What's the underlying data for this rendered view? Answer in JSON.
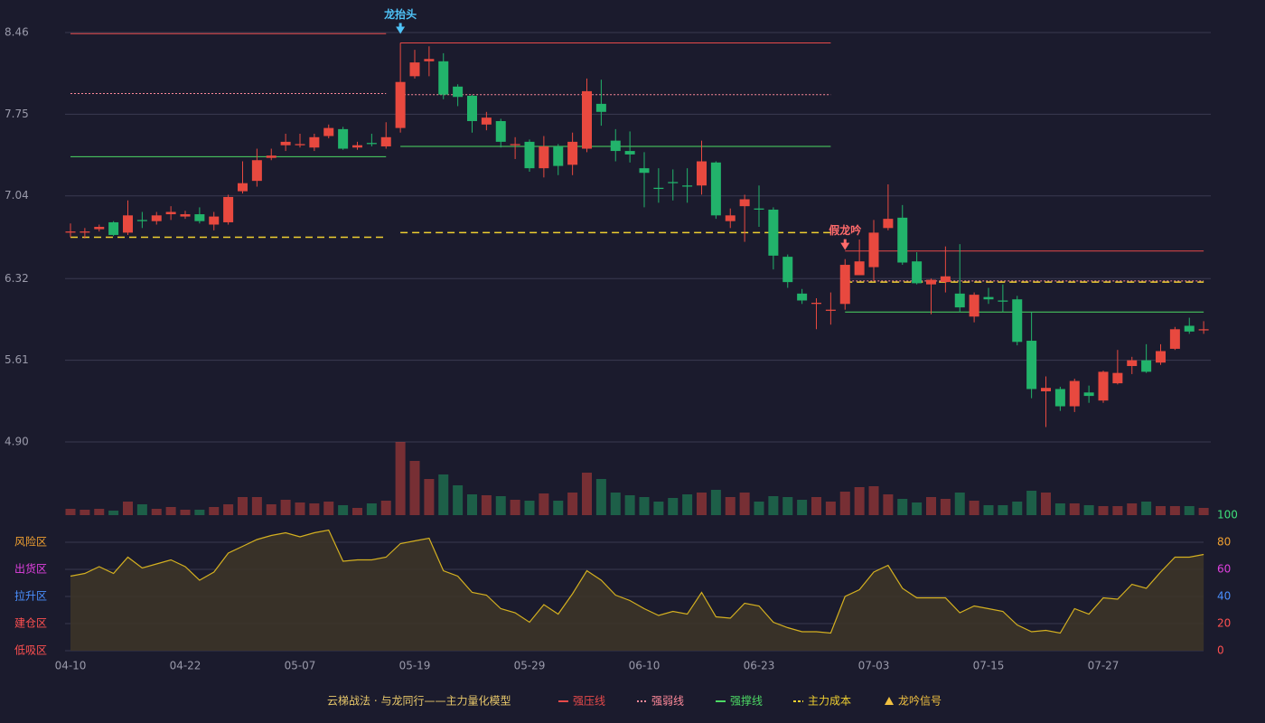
{
  "chart_data": {
    "type": "candlestick",
    "categories": [
      "04-10",
      null,
      null,
      null,
      null,
      null,
      null,
      null,
      "04-22",
      null,
      null,
      null,
      null,
      null,
      null,
      null,
      "05-07",
      null,
      null,
      null,
      null,
      null,
      null,
      null,
      "05-19",
      null,
      null,
      null,
      null,
      null,
      null,
      null,
      "05-29",
      null,
      null,
      null,
      null,
      null,
      null,
      null,
      "06-10",
      null,
      null,
      null,
      null,
      null,
      null,
      null,
      "06-23",
      null,
      null,
      null,
      null,
      null,
      null,
      null,
      "07-03",
      null,
      null,
      null,
      null,
      null,
      null,
      null,
      "07-15",
      null,
      null,
      null,
      null,
      null,
      null,
      null,
      "07-27",
      null,
      null,
      null,
      null,
      null,
      null,
      null
    ],
    "open": [
      6.72,
      6.72,
      6.75,
      6.81,
      6.72,
      6.83,
      6.82,
      6.88,
      6.86,
      6.88,
      6.79,
      6.81,
      7.08,
      7.17,
      7.37,
      7.48,
      7.48,
      7.46,
      7.56,
      7.62,
      7.46,
      7.5,
      7.47,
      7.63,
      8.08,
      8.21,
      8.21,
      7.99,
      7.91,
      7.66,
      7.69,
      7.48,
      7.51,
      7.28,
      7.47,
      7.31,
      7.45,
      7.84,
      7.52,
      7.43,
      7.28,
      7.11,
      7.16,
      7.13,
      7.13,
      7.33,
      6.82,
      6.95,
      6.93,
      6.92,
      6.51,
      6.19,
      6.1,
      6.04,
      6.1,
      6.35,
      6.42,
      6.76,
      6.85,
      6.47,
      6.27,
      6.29,
      6.19,
      5.99,
      6.16,
      6.13,
      6.14,
      5.78,
      5.34,
      5.36,
      5.21,
      5.33,
      5.26,
      5.41,
      5.56,
      5.61,
      5.59,
      5.71,
      5.91,
      5.87
    ],
    "high": [
      6.8,
      6.76,
      6.79,
      6.82,
      7.0,
      6.9,
      6.9,
      6.95,
      6.91,
      6.94,
      6.9,
      7.05,
      7.34,
      7.45,
      7.45,
      7.58,
      7.58,
      7.58,
      7.66,
      7.64,
      7.51,
      7.58,
      7.68,
      8.37,
      8.31,
      8.34,
      8.28,
      8.01,
      7.92,
      7.77,
      7.71,
      7.55,
      7.53,
      7.56,
      7.49,
      7.59,
      8.06,
      8.05,
      7.62,
      7.6,
      7.42,
      7.28,
      7.27,
      7.28,
      7.52,
      7.34,
      6.93,
      7.05,
      7.13,
      6.94,
      6.53,
      6.23,
      6.15,
      6.2,
      6.49,
      6.66,
      6.83,
      7.14,
      6.96,
      6.55,
      6.32,
      6.6,
      6.62,
      6.2,
      6.24,
      6.27,
      6.17,
      6.03,
      5.47,
      5.38,
      5.45,
      5.39,
      5.52,
      5.7,
      5.64,
      5.75,
      5.75,
      5.9,
      5.98,
      5.95
    ],
    "low": [
      6.68,
      6.67,
      6.73,
      6.69,
      6.7,
      6.76,
      6.79,
      6.83,
      6.84,
      6.8,
      6.74,
      6.79,
      7.06,
      7.12,
      7.35,
      7.43,
      7.46,
      7.43,
      7.54,
      7.44,
      7.44,
      7.47,
      7.45,
      7.59,
      8.06,
      8.08,
      7.88,
      7.82,
      7.59,
      7.61,
      7.46,
      7.36,
      7.25,
      7.2,
      7.22,
      7.22,
      7.42,
      7.65,
      7.34,
      7.33,
      6.94,
      6.98,
      7.0,
      6.98,
      7.05,
      6.84,
      6.76,
      6.64,
      6.77,
      6.4,
      6.24,
      6.1,
      5.88,
      5.92,
      6.05,
      6.35,
      6.3,
      6.74,
      6.44,
      6.27,
      6.01,
      6.2,
      6.03,
      5.94,
      6.1,
      6.03,
      5.74,
      5.28,
      5.03,
      5.17,
      5.16,
      5.24,
      5.24,
      5.4,
      5.49,
      5.5,
      5.57,
      5.7,
      5.84,
      5.84
    ],
    "close": [
      6.73,
      6.73,
      6.77,
      6.7,
      6.87,
      6.82,
      6.87,
      6.9,
      6.88,
      6.82,
      6.86,
      7.03,
      7.15,
      7.35,
      7.39,
      7.51,
      7.49,
      7.55,
      7.63,
      7.45,
      7.48,
      7.49,
      7.55,
      8.03,
      8.2,
      8.23,
      7.92,
      7.9,
      7.69,
      7.72,
      7.51,
      7.49,
      7.28,
      7.47,
      7.3,
      7.51,
      7.95,
      7.77,
      7.43,
      7.4,
      7.24,
      7.1,
      7.15,
      7.12,
      7.34,
      6.87,
      6.87,
      7.01,
      6.92,
      6.52,
      6.29,
      6.13,
      6.11,
      6.05,
      6.44,
      6.47,
      6.72,
      6.84,
      6.46,
      6.28,
      6.31,
      6.34,
      6.07,
      6.18,
      6.14,
      6.12,
      5.77,
      5.36,
      5.37,
      5.21,
      5.43,
      5.3,
      5.51,
      5.5,
      5.61,
      5.51,
      5.69,
      5.88,
      5.86,
      5.88
    ],
    "up_color": "#e8493f",
    "down_color": "#22b36b",
    "ylim": [
      4.9,
      8.46
    ],
    "yticks": [
      {
        "value": 4.9,
        "label": "4.90"
      },
      5.61,
      6.32,
      7.04,
      7.75,
      8.46
    ],
    "grid": true,
    "volume": [
      7,
      6,
      7,
      5,
      15,
      12,
      7,
      9,
      6,
      6,
      9,
      12,
      20,
      20,
      12,
      17,
      14,
      13,
      15,
      11,
      8,
      13,
      16,
      81,
      60,
      40,
      45,
      33,
      23,
      22,
      21,
      17,
      16,
      24,
      16,
      25,
      47,
      40,
      25,
      22,
      20,
      15,
      19,
      23,
      25,
      28,
      20,
      25,
      15,
      21,
      20,
      17,
      20,
      15,
      26,
      31,
      32,
      23,
      18,
      14,
      20,
      18,
      25,
      16,
      11,
      11,
      15,
      27,
      25,
      13,
      13,
      11,
      10,
      10,
      13,
      15,
      10,
      10,
      10,
      8
    ],
    "indicator": [
      55,
      57,
      62,
      57,
      69,
      61,
      64,
      67,
      62,
      52,
      58,
      72,
      77,
      82,
      85,
      87,
      84,
      87,
      89,
      66,
      67,
      67,
      69,
      79,
      81,
      83,
      59,
      55,
      43,
      41,
      31,
      28,
      21,
      34,
      27,
      42,
      59,
      52,
      41,
      37,
      31,
      26,
      29,
      27,
      43,
      25,
      24,
      35,
      33,
      21,
      17,
      14,
      14,
      13,
      40,
      45,
      58,
      63,
      46,
      39,
      39,
      39,
      28,
      33,
      31,
      29,
      19,
      14,
      15,
      13,
      31,
      27,
      39,
      38,
      49,
      46,
      58,
      69,
      69,
      71
    ],
    "indicator_color": "#d4b020",
    "indicator_ylim": [
      0,
      100
    ],
    "indicator_yticks": [
      0,
      20,
      40,
      60,
      80,
      100
    ],
    "indicator_ytick_colors": [
      "#ff5050",
      "#ff5050",
      "#4a90ff",
      "#e040e0",
      "#f0a030",
      "#3ee07a"
    ],
    "zones": [
      {
        "label": "风险区",
        "value": 80,
        "color": "#f0a030"
      },
      {
        "label": "出货区",
        "value": 60,
        "color": "#e040e0"
      },
      {
        "label": "拉升区",
        "value": 40,
        "color": "#4a90ff"
      },
      {
        "label": "建仓区",
        "value": 20,
        "color": "#ff5050"
      },
      {
        "label": "低吸区",
        "value": 0,
        "color": "#ff5050"
      }
    ],
    "legend_title": "云梯战法 · 与龙同行——主力量化模型",
    "series": [
      {
        "name": "强压线",
        "color": "#e84a4a",
        "style": "solid",
        "values": [
          8.45,
          8.45,
          8.45,
          8.45,
          8.45,
          8.45,
          8.45,
          8.45,
          8.45,
          8.45,
          8.45,
          8.45,
          8.45,
          8.45,
          8.45,
          8.45,
          8.45,
          8.45,
          8.45,
          8.45,
          8.45,
          8.45,
          8.45,
          8.37,
          8.37,
          8.37,
          8.37,
          8.37,
          8.37,
          8.37,
          8.37,
          8.37,
          8.37,
          8.37,
          8.37,
          8.37,
          8.37,
          8.37,
          8.37,
          8.37,
          8.37,
          8.37,
          8.37,
          8.37,
          8.37,
          8.37,
          8.37,
          8.37,
          8.37,
          8.37,
          8.37,
          8.37,
          8.37,
          8.37,
          6.56,
          6.56,
          6.56,
          6.56,
          6.56,
          6.56,
          6.56,
          6.56,
          6.56,
          6.56,
          6.56,
          6.56,
          6.56,
          6.56,
          6.56,
          6.56,
          6.56,
          6.56,
          6.56,
          6.56,
          6.56,
          6.56,
          6.56,
          6.56,
          6.56,
          6.56
        ]
      },
      {
        "name": "强弱线",
        "color": "#ff8a9a",
        "style": "dotted",
        "values": [
          7.93,
          7.93,
          7.93,
          7.93,
          7.93,
          7.93,
          7.93,
          7.93,
          7.93,
          7.93,
          7.93,
          7.93,
          7.93,
          7.93,
          7.93,
          7.93,
          7.93,
          7.93,
          7.93,
          7.93,
          7.93,
          7.93,
          7.93,
          7.92,
          7.92,
          7.92,
          7.92,
          7.92,
          7.92,
          7.92,
          7.92,
          7.92,
          7.92,
          7.92,
          7.92,
          7.92,
          7.92,
          7.92,
          7.92,
          7.92,
          7.92,
          7.92,
          7.92,
          7.92,
          7.92,
          7.92,
          7.92,
          7.92,
          7.92,
          7.92,
          7.92,
          7.92,
          7.92,
          7.92,
          6.3,
          6.3,
          6.3,
          6.3,
          6.3,
          6.3,
          6.3,
          6.3,
          6.3,
          6.3,
          6.3,
          6.3,
          6.3,
          6.3,
          6.3,
          6.3,
          6.3,
          6.3,
          6.3,
          6.3,
          6.3,
          6.3,
          6.3,
          6.3,
          6.3,
          6.3
        ]
      },
      {
        "name": "强撑线",
        "color": "#4cd964",
        "style": "solid",
        "values": [
          7.38,
          7.38,
          7.38,
          7.38,
          7.38,
          7.38,
          7.38,
          7.38,
          7.38,
          7.38,
          7.38,
          7.38,
          7.38,
          7.38,
          7.38,
          7.38,
          7.38,
          7.38,
          7.38,
          7.38,
          7.38,
          7.38,
          7.38,
          7.47,
          7.47,
          7.47,
          7.47,
          7.47,
          7.47,
          7.47,
          7.47,
          7.47,
          7.47,
          7.47,
          7.47,
          7.47,
          7.47,
          7.47,
          7.47,
          7.47,
          7.47,
          7.47,
          7.47,
          7.47,
          7.47,
          7.47,
          7.47,
          7.47,
          7.47,
          7.47,
          7.47,
          7.47,
          7.47,
          7.47,
          6.03,
          6.03,
          6.03,
          6.03,
          6.03,
          6.03,
          6.03,
          6.03,
          6.03,
          6.03,
          6.03,
          6.03,
          6.03,
          6.03,
          6.03,
          6.03,
          6.03,
          6.03,
          6.03,
          6.03,
          6.03,
          6.03,
          6.03,
          6.03,
          6.03,
          6.03
        ]
      },
      {
        "name": "主力成本",
        "color": "#f0d030",
        "style": "dashed",
        "values": [
          6.68,
          6.68,
          6.68,
          6.68,
          6.68,
          6.68,
          6.68,
          6.68,
          6.68,
          6.68,
          6.68,
          6.68,
          6.68,
          6.68,
          6.68,
          6.68,
          6.68,
          6.68,
          6.68,
          6.68,
          6.68,
          6.68,
          6.68,
          6.72,
          6.72,
          6.72,
          6.72,
          6.72,
          6.72,
          6.72,
          6.72,
          6.72,
          6.72,
          6.72,
          6.72,
          6.72,
          6.72,
          6.72,
          6.72,
          6.72,
          6.72,
          6.72,
          6.72,
          6.72,
          6.72,
          6.72,
          6.72,
          6.72,
          6.72,
          6.72,
          6.72,
          6.72,
          6.72,
          6.72,
          6.29,
          6.29,
          6.29,
          6.29,
          6.29,
          6.29,
          6.29,
          6.29,
          6.29,
          6.29,
          6.29,
          6.29,
          6.29,
          6.29,
          6.29,
          6.29,
          6.29,
          6.29,
          6.29,
          6.29,
          6.29,
          6.29,
          6.29,
          6.29,
          6.29,
          6.29
        ]
      }
    ],
    "signal_legend": {
      "name": "龙吟信号",
      "color": "#f0c040"
    },
    "signals": [
      {
        "label": "龙抬头",
        "color": "#4fc3f7",
        "index": 23
      },
      {
        "label": "假龙吟",
        "color": "#ff6b6b",
        "index": 54
      }
    ]
  }
}
